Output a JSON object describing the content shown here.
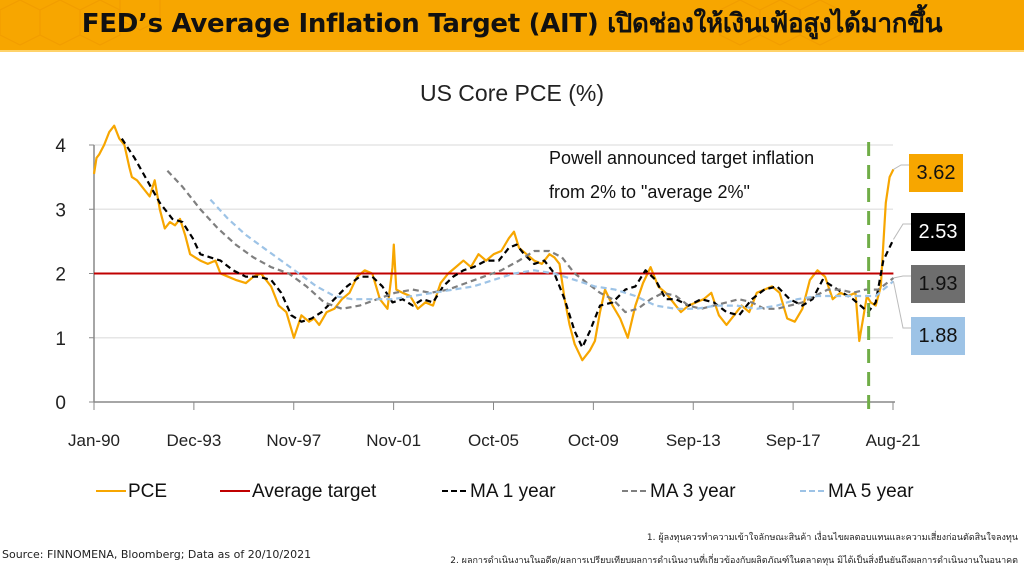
{
  "header": {
    "title": "FED’s Average Inflation Target (AIT) เปิดช่องให้เงินเฟ้อสูงได้มากขึ้น",
    "background_color": "#f7a600"
  },
  "annotation": {
    "line1": "Powell announced target inflation",
    "line2": "from 2% to \"average 2%\"",
    "marker_date": "Aug-20"
  },
  "value_labels": [
    {
      "series": "PCE",
      "value": "3.62",
      "bg": "#f7a600",
      "fg": "#111111"
    },
    {
      "series": "MA 1 year",
      "value": "2.53",
      "bg": "#000000",
      "fg": "#ffffff"
    },
    {
      "series": "MA 3 year",
      "value": "1.93",
      "bg": "#6e6e6e",
      "fg": "#111111"
    },
    {
      "series": "MA 5 year",
      "value": "1.88",
      "bg": "#9dc3e6",
      "fg": "#111111"
    }
  ],
  "legend": [
    {
      "label": "PCE",
      "style": "solid",
      "color": "#f7a600"
    },
    {
      "label": "Average target",
      "style": "solid",
      "color": "#c00000"
    },
    {
      "label": "MA 1 year",
      "style": "dashed",
      "color": "#000000"
    },
    {
      "label": "MA 3 year",
      "style": "dashed",
      "color": "#7f7f7f"
    },
    {
      "label": "MA 5 year",
      "style": "dashed",
      "color": "#9dc3e6"
    }
  ],
  "footer": {
    "source": "Source: FINNOMENA, Bloomberg; Data as of 20/10/2021",
    "note1": "1. ผู้ลงทุนควรทำความเข้าใจลักษณะสินค้า เงื่อนไขผลตอบแทนและความเสี่ยงก่อนตัดสินใจลงทุน",
    "note2": "2. ผลการดำเนินงานในอดีต/ผลการเปรียบเทียบผลการดำเนินงานที่เกี่ยวข้องกับผลิตภัณฑ์ในตลาดทุน มิได้เป็นสิ่งยืนยันถึงผลการดำเนินงานในอนาคต"
  },
  "chart_data": {
    "type": "line",
    "title": "US Core PCE (%)",
    "xlabel": "",
    "ylabel": "",
    "ylim": [
      0,
      4
    ],
    "yticks": [
      "0",
      "1",
      "2",
      "3",
      "4"
    ],
    "xticks": [
      "Jan-90",
      "Dec-93",
      "Nov-97",
      "Nov-01",
      "Oct-05",
      "Oct-09",
      "Sep-13",
      "Sep-17",
      "Aug-21"
    ],
    "x_range": [
      "1990-01",
      "2021-08"
    ],
    "grid": "horizontal",
    "legend_position": "bottom",
    "vertical_marker": {
      "x": 2020.62,
      "color": "#70ad47",
      "style": "dashed"
    },
    "series": [
      {
        "name": "PCE",
        "color": "#f7a600",
        "style": "solid",
        "x": [
          1990.0,
          1990.1,
          1990.2,
          1990.4,
          1990.6,
          1990.8,
          1991.0,
          1991.2,
          1991.4,
          1991.5,
          1991.7,
          1992.0,
          1992.2,
          1992.4,
          1992.6,
          1992.8,
          1993.0,
          1993.2,
          1993.4,
          1993.6,
          1993.8,
          1994.0,
          1994.2,
          1994.5,
          1994.8,
          1995.0,
          1995.3,
          1995.6,
          1996.0,
          1996.3,
          1996.6,
          1997.0,
          1997.3,
          1997.6,
          1997.9,
          1998.2,
          1998.5,
          1998.7,
          1998.9,
          1999.2,
          1999.5,
          1999.8,
          2000.1,
          2000.4,
          2000.7,
          2001.0,
          2001.3,
          2001.6,
          2001.8,
          2001.85,
          2001.95,
          2002.2,
          2002.5,
          2002.8,
          2003.1,
          2003.4,
          2003.7,
          2004.0,
          2004.3,
          2004.6,
          2004.9,
          2005.2,
          2005.5,
          2005.8,
          2006.1,
          2006.4,
          2006.6,
          2006.8,
          2007.1,
          2007.4,
          2007.7,
          2008.0,
          2008.2,
          2008.4,
          2008.6,
          2008.8,
          2009.0,
          2009.3,
          2009.6,
          2009.8,
          2010.0,
          2010.2,
          2010.5,
          2010.8,
          2011.1,
          2011.4,
          2011.7,
          2012.0,
          2012.3,
          2012.6,
          2012.9,
          2013.2,
          2013.5,
          2013.8,
          2014.1,
          2014.4,
          2014.7,
          2015.0,
          2015.3,
          2015.6,
          2015.9,
          2016.2,
          2016.5,
          2016.8,
          2017.1,
          2017.4,
          2017.7,
          2018.0,
          2018.3,
          2018.6,
          2018.9,
          2019.2,
          2019.5,
          2019.8,
          2020.1,
          2020.25,
          2020.4,
          2020.55,
          2020.7,
          2020.9,
          2021.1,
          2021.3,
          2021.45,
          2021.6
        ],
        "values": [
          3.55,
          3.8,
          3.85,
          4.0,
          4.2,
          4.3,
          4.1,
          4.0,
          3.65,
          3.5,
          3.45,
          3.3,
          3.2,
          3.45,
          3.0,
          2.7,
          2.8,
          2.75,
          2.85,
          2.6,
          2.3,
          2.25,
          2.2,
          2.15,
          2.2,
          2.0,
          1.95,
          1.9,
          1.85,
          1.95,
          2.0,
          1.8,
          1.5,
          1.4,
          1.0,
          1.35,
          1.25,
          1.3,
          1.2,
          1.4,
          1.45,
          1.6,
          1.7,
          1.95,
          2.05,
          2.0,
          1.6,
          1.45,
          2.1,
          2.45,
          1.75,
          1.7,
          1.65,
          1.45,
          1.55,
          1.5,
          1.85,
          2.0,
          2.1,
          2.2,
          2.1,
          2.3,
          2.2,
          2.3,
          2.35,
          2.55,
          2.65,
          2.4,
          2.3,
          2.2,
          2.15,
          2.3,
          2.25,
          2.15,
          1.6,
          1.2,
          0.9,
          0.65,
          0.8,
          0.95,
          1.4,
          1.75,
          1.5,
          1.3,
          1.0,
          1.5,
          1.85,
          2.1,
          1.8,
          1.7,
          1.55,
          1.4,
          1.5,
          1.55,
          1.6,
          1.7,
          1.35,
          1.2,
          1.35,
          1.5,
          1.4,
          1.7,
          1.75,
          1.8,
          1.7,
          1.3,
          1.25,
          1.45,
          1.9,
          2.05,
          1.95,
          1.6,
          1.7,
          1.65,
          1.7,
          0.95,
          1.3,
          1.65,
          1.55,
          1.5,
          1.8,
          3.1,
          3.5,
          3.62
        ]
      },
      {
        "name": "Average target",
        "color": "#c00000",
        "style": "solid",
        "x": [
          1990.0,
          2021.6
        ],
        "values": [
          2.0,
          2.0
        ]
      },
      {
        "name": "MA 1 year",
        "color": "#000000",
        "style": "dashed",
        "x": [
          1991.1,
          1991.6,
          1992.1,
          1992.6,
          1993.1,
          1993.5,
          1993.9,
          1994.2,
          1994.6,
          1995.0,
          1995.5,
          1996.0,
          1996.5,
          1997.0,
          1997.4,
          1997.8,
          1998.2,
          1998.6,
          1999.0,
          1999.5,
          2000.0,
          2000.5,
          2001.0,
          2001.4,
          2001.8,
          2002.2,
          2002.6,
          2003.0,
          2003.4,
          2003.8,
          2004.2,
          2004.6,
          2005.0,
          2005.5,
          2006.0,
          2006.4,
          2006.7,
          2007.0,
          2007.4,
          2007.8,
          2008.2,
          2008.6,
          2009.0,
          2009.3,
          2009.6,
          2010.0,
          2010.5,
          2011.0,
          2011.4,
          2011.8,
          2012.2,
          2012.6,
          2013.0,
          2013.5,
          2014.0,
          2014.5,
          2015.0,
          2015.5,
          2016.0,
          2016.5,
          2017.0,
          2017.5,
          2018.0,
          2018.4,
          2018.8,
          2019.2,
          2019.6,
          2020.0,
          2020.3,
          2020.6,
          2020.9,
          2021.2,
          2021.6
        ],
        "values": [
          4.1,
          3.8,
          3.45,
          3.1,
          2.85,
          2.8,
          2.55,
          2.3,
          2.25,
          2.2,
          2.05,
          1.95,
          1.95,
          1.9,
          1.7,
          1.35,
          1.25,
          1.3,
          1.4,
          1.6,
          1.8,
          1.95,
          1.95,
          1.8,
          1.55,
          1.6,
          1.5,
          1.6,
          1.55,
          1.8,
          1.95,
          2.05,
          2.1,
          2.2,
          2.2,
          2.4,
          2.45,
          2.3,
          2.15,
          2.2,
          2.0,
          1.6,
          1.1,
          0.85,
          1.1,
          1.5,
          1.55,
          1.75,
          1.8,
          2.05,
          1.9,
          1.6,
          1.6,
          1.5,
          1.6,
          1.55,
          1.4,
          1.35,
          1.6,
          1.75,
          1.8,
          1.6,
          1.5,
          1.6,
          1.9,
          1.8,
          1.7,
          1.6,
          1.5,
          1.4,
          1.55,
          2.2,
          2.53
        ]
      },
      {
        "name": "MA 3 year",
        "color": "#7f7f7f",
        "style": "dashed",
        "x": [
          1992.9,
          1993.5,
          1994.2,
          1994.9,
          1995.6,
          1996.3,
          1997.0,
          1997.7,
          1998.4,
          1999.1,
          1999.8,
          2000.5,
          2001.2,
          2001.9,
          2002.6,
          2003.3,
          2004.0,
          2004.7,
          2005.4,
          2006.1,
          2006.8,
          2007.4,
          2008.0,
          2008.5,
          2009.0,
          2009.5,
          2010.0,
          2010.5,
          2011.0,
          2011.5,
          2012.0,
          2012.5,
          2013.0,
          2013.5,
          2014.0,
          2014.5,
          2015.0,
          2015.5,
          2016.0,
          2016.5,
          2017.0,
          2017.5,
          2018.0,
          2018.5,
          2019.0,
          2019.5,
          2020.0,
          2020.5,
          2021.0,
          2021.6
        ],
        "values": [
          3.6,
          3.35,
          3.0,
          2.7,
          2.45,
          2.25,
          2.1,
          2.0,
          1.8,
          1.55,
          1.45,
          1.5,
          1.6,
          1.7,
          1.75,
          1.7,
          1.75,
          1.85,
          1.95,
          2.05,
          2.2,
          2.35,
          2.35,
          2.25,
          2.0,
          1.85,
          1.7,
          1.6,
          1.4,
          1.45,
          1.6,
          1.7,
          1.65,
          1.5,
          1.45,
          1.5,
          1.55,
          1.6,
          1.55,
          1.45,
          1.45,
          1.5,
          1.55,
          1.65,
          1.75,
          1.75,
          1.7,
          1.75,
          1.75,
          1.93
        ]
      },
      {
        "name": "MA 5 year",
        "color": "#9dc3e6",
        "style": "dashed",
        "x": [
          1994.6,
          1995.3,
          1996.0,
          1996.7,
          1997.4,
          1998.1,
          1998.8,
          1999.5,
          2000.2,
          2001.0,
          2001.8,
          2002.6,
          2003.4,
          2004.2,
          2005.0,
          2005.8,
          2006.6,
          2007.4,
          2008.2,
          2009.0,
          2009.8,
          2010.6,
          2011.4,
          2012.2,
          2013.0,
          2013.8,
          2014.6,
          2015.4,
          2016.2,
          2017.0,
          2017.8,
          2018.6,
          2019.4,
          2020.2,
          2020.9,
          2021.6
        ],
        "values": [
          3.15,
          2.85,
          2.6,
          2.4,
          2.2,
          2.0,
          1.8,
          1.65,
          1.6,
          1.6,
          1.6,
          1.65,
          1.7,
          1.75,
          1.8,
          1.9,
          2.0,
          2.05,
          2.0,
          1.9,
          1.8,
          1.75,
          1.65,
          1.5,
          1.45,
          1.45,
          1.5,
          1.5,
          1.45,
          1.5,
          1.6,
          1.65,
          1.65,
          1.65,
          1.65,
          1.88
        ]
      }
    ]
  }
}
